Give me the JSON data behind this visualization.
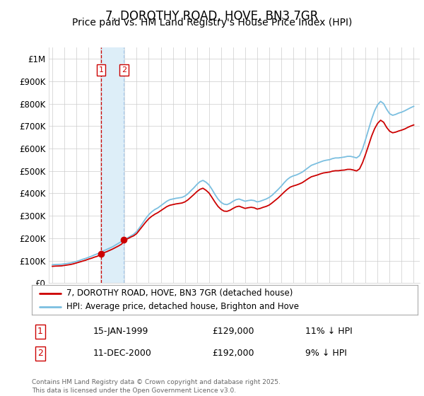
{
  "title": "7, DOROTHY ROAD, HOVE, BN3 7GR",
  "subtitle": "Price paid vs. HM Land Registry's House Price Index (HPI)",
  "title_fontsize": 12,
  "subtitle_fontsize": 10,
  "ylabel_ticks": [
    "£0",
    "£100K",
    "£200K",
    "£300K",
    "£400K",
    "£500K",
    "£600K",
    "£700K",
    "£800K",
    "£900K",
    "£1M"
  ],
  "ytick_vals": [
    0,
    100000,
    200000,
    300000,
    400000,
    500000,
    600000,
    700000,
    800000,
    900000,
    1000000
  ],
  "ylim": [
    0,
    1050000
  ],
  "xlim_start": 1994.7,
  "xlim_end": 2025.5,
  "xticks": [
    1995,
    1996,
    1997,
    1998,
    1999,
    2000,
    2001,
    2002,
    2003,
    2004,
    2005,
    2006,
    2007,
    2008,
    2009,
    2010,
    2011,
    2012,
    2013,
    2014,
    2015,
    2016,
    2017,
    2018,
    2019,
    2020,
    2021,
    2022,
    2023,
    2024,
    2025
  ],
  "hpi_color": "#7bbfe0",
  "price_color": "#cc0000",
  "transaction_color": "#cc0000",
  "transaction1_x": 1999.04,
  "transaction1_y": 129000,
  "transaction1_label": "1",
  "transaction1_date": "15-JAN-1999",
  "transaction1_price": "£129,000",
  "transaction1_hpi": "11% ↓ HPI",
  "transaction2_x": 2000.94,
  "transaction2_y": 192000,
  "transaction2_label": "2",
  "transaction2_date": "11-DEC-2000",
  "transaction2_price": "£192,000",
  "transaction2_hpi": "9% ↓ HPI",
  "vline_color_1": "#cc0000",
  "vline_color_2": "#aaccee",
  "shade_color": "#ddeef8",
  "legend_line1": "7, DOROTHY ROAD, HOVE, BN3 7GR (detached house)",
  "legend_line2": "HPI: Average price, detached house, Brighton and Hove",
  "footer": "Contains HM Land Registry data © Crown copyright and database right 2025.\nThis data is licensed under the Open Government Licence v3.0.",
  "background_color": "#ffffff",
  "grid_color": "#cccccc",
  "hpi_data_x": [
    1995.0,
    1995.25,
    1995.5,
    1995.75,
    1996.0,
    1996.25,
    1996.5,
    1996.75,
    1997.0,
    1997.25,
    1997.5,
    1997.75,
    1998.0,
    1998.25,
    1998.5,
    1998.75,
    1999.0,
    1999.25,
    1999.5,
    1999.75,
    2000.0,
    2000.25,
    2000.5,
    2000.75,
    2001.0,
    2001.25,
    2001.5,
    2001.75,
    2002.0,
    2002.25,
    2002.5,
    2002.75,
    2003.0,
    2003.25,
    2003.5,
    2003.75,
    2004.0,
    2004.25,
    2004.5,
    2004.75,
    2005.0,
    2005.25,
    2005.5,
    2005.75,
    2006.0,
    2006.25,
    2006.5,
    2006.75,
    2007.0,
    2007.25,
    2007.5,
    2007.75,
    2008.0,
    2008.25,
    2008.5,
    2008.75,
    2009.0,
    2009.25,
    2009.5,
    2009.75,
    2010.0,
    2010.25,
    2010.5,
    2010.75,
    2011.0,
    2011.25,
    2011.5,
    2011.75,
    2012.0,
    2012.25,
    2012.5,
    2012.75,
    2013.0,
    2013.25,
    2013.5,
    2013.75,
    2014.0,
    2014.25,
    2014.5,
    2014.75,
    2015.0,
    2015.25,
    2015.5,
    2015.75,
    2016.0,
    2016.25,
    2016.5,
    2016.75,
    2017.0,
    2017.25,
    2017.5,
    2017.75,
    2018.0,
    2018.25,
    2018.5,
    2018.75,
    2019.0,
    2019.25,
    2019.5,
    2019.75,
    2020.0,
    2020.25,
    2020.5,
    2020.75,
    2021.0,
    2021.25,
    2021.5,
    2021.75,
    2022.0,
    2022.25,
    2022.5,
    2022.75,
    2023.0,
    2023.25,
    2023.5,
    2023.75,
    2024.0,
    2024.25,
    2024.5,
    2024.75,
    2025.0
  ],
  "hpi_data_y": [
    82000,
    83000,
    83500,
    84000,
    86000,
    88000,
    90000,
    93000,
    97000,
    101000,
    106000,
    110000,
    115000,
    120000,
    126000,
    131000,
    137000,
    144000,
    150000,
    156000,
    162000,
    170000,
    178000,
    186000,
    194000,
    202000,
    210000,
    218000,
    230000,
    248000,
    268000,
    288000,
    305000,
    318000,
    328000,
    335000,
    345000,
    355000,
    365000,
    372000,
    375000,
    378000,
    380000,
    382000,
    388000,
    398000,
    412000,
    425000,
    440000,
    452000,
    458000,
    450000,
    438000,
    418000,
    395000,
    375000,
    360000,
    352000,
    350000,
    356000,
    365000,
    372000,
    375000,
    370000,
    365000,
    368000,
    370000,
    368000,
    362000,
    365000,
    370000,
    375000,
    382000,
    392000,
    405000,
    418000,
    432000,
    448000,
    462000,
    472000,
    478000,
    482000,
    488000,
    495000,
    505000,
    515000,
    525000,
    530000,
    535000,
    540000,
    545000,
    548000,
    550000,
    555000,
    558000,
    558000,
    560000,
    562000,
    565000,
    565000,
    562000,
    558000,
    568000,
    598000,
    640000,
    685000,
    730000,
    768000,
    795000,
    810000,
    800000,
    775000,
    755000,
    748000,
    752000,
    758000,
    762000,
    768000,
    775000,
    782000,
    788000
  ],
  "price_data_x": [
    1995.0,
    1995.25,
    1995.5,
    1995.75,
    1996.0,
    1996.25,
    1996.5,
    1996.75,
    1997.0,
    1997.25,
    1997.5,
    1997.75,
    1998.0,
    1998.25,
    1998.5,
    1998.75,
    1999.0,
    1999.25,
    1999.5,
    1999.75,
    2000.0,
    2000.25,
    2000.5,
    2000.75,
    2001.0,
    2001.25,
    2001.5,
    2001.75,
    2002.0,
    2002.25,
    2002.5,
    2002.75,
    2003.0,
    2003.25,
    2003.5,
    2003.75,
    2004.0,
    2004.25,
    2004.5,
    2004.75,
    2005.0,
    2005.25,
    2005.5,
    2005.75,
    2006.0,
    2006.25,
    2006.5,
    2006.75,
    2007.0,
    2007.25,
    2007.5,
    2007.75,
    2008.0,
    2008.25,
    2008.5,
    2008.75,
    2009.0,
    2009.25,
    2009.5,
    2009.75,
    2010.0,
    2010.25,
    2010.5,
    2010.75,
    2011.0,
    2011.25,
    2011.5,
    2011.75,
    2012.0,
    2012.25,
    2012.5,
    2012.75,
    2013.0,
    2013.25,
    2013.5,
    2013.75,
    2014.0,
    2014.25,
    2014.5,
    2014.75,
    2015.0,
    2015.25,
    2015.5,
    2015.75,
    2016.0,
    2016.25,
    2016.5,
    2016.75,
    2017.0,
    2017.25,
    2017.5,
    2017.75,
    2018.0,
    2018.25,
    2018.5,
    2018.75,
    2019.0,
    2019.25,
    2019.5,
    2019.75,
    2020.0,
    2020.25,
    2020.5,
    2020.75,
    2021.0,
    2021.25,
    2021.5,
    2021.75,
    2022.0,
    2022.25,
    2022.5,
    2022.75,
    2023.0,
    2023.25,
    2023.5,
    2023.75,
    2024.0,
    2024.25,
    2024.5,
    2024.75,
    2025.0
  ],
  "price_data_y": [
    75000,
    76000,
    76500,
    77000,
    79000,
    81000,
    83000,
    86000,
    90000,
    94000,
    98000,
    102000,
    107000,
    111000,
    116000,
    120000,
    129000,
    135000,
    140000,
    146000,
    152000,
    159000,
    166000,
    174000,
    192000,
    198000,
    205000,
    211000,
    221000,
    238000,
    255000,
    272000,
    287000,
    298000,
    307000,
    314000,
    323000,
    332000,
    341000,
    347000,
    350000,
    353000,
    355000,
    357000,
    362000,
    371000,
    383000,
    395000,
    408000,
    418000,
    423000,
    414000,
    402000,
    382000,
    361000,
    342000,
    329000,
    321000,
    320000,
    325000,
    333000,
    340000,
    343000,
    338000,
    333000,
    336000,
    338000,
    336000,
    330000,
    333000,
    338000,
    342000,
    348000,
    358000,
    369000,
    380000,
    393000,
    406000,
    418000,
    428000,
    433000,
    437000,
    442000,
    448000,
    457000,
    466000,
    474000,
    478000,
    482000,
    487000,
    491000,
    493000,
    495000,
    499000,
    501000,
    501000,
    503000,
    504000,
    507000,
    507000,
    504000,
    500000,
    509000,
    537000,
    574000,
    614000,
    655000,
    688000,
    712000,
    726000,
    717000,
    694000,
    677000,
    670000,
    673000,
    678000,
    682000,
    687000,
    694000,
    700000,
    705000
  ]
}
